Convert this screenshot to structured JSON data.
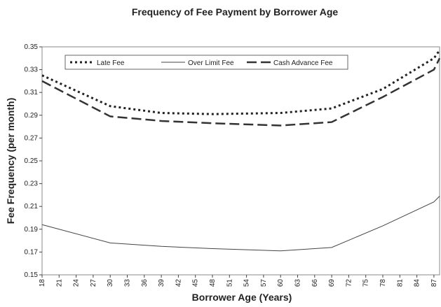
{
  "chart_data": {
    "type": "line",
    "title": "Frequency of Fee Payment by Borrower Age",
    "x_label": "Borrower Age (Years)",
    "y_label": "Fee Frequency (per month)",
    "x": [
      18,
      30,
      39,
      48,
      60,
      69,
      78,
      87,
      88
    ],
    "series": [
      {
        "name": "Late Fee",
        "color": "#222222",
        "dash": "3,4",
        "width": 3,
        "values": [
          0.325,
          0.298,
          0.292,
          0.291,
          0.292,
          0.296,
          0.313,
          0.34,
          0.347
        ]
      },
      {
        "name": "Over Limit Fee",
        "color": "#444444",
        "dash": "none",
        "width": 1,
        "values": [
          0.194,
          0.178,
          0.175,
          0.173,
          0.171,
          0.174,
          0.193,
          0.214,
          0.219
        ]
      },
      {
        "name": "Cash Advance Fee",
        "color": "#333333",
        "dash": "14,6",
        "width": 2.5,
        "values": [
          0.32,
          0.289,
          0.285,
          0.283,
          0.281,
          0.284,
          0.306,
          0.33,
          0.34
        ]
      }
    ],
    "xlim": [
      18,
      88
    ],
    "xticks": [
      18,
      21,
      24,
      27,
      30,
      33,
      36,
      39,
      42,
      45,
      48,
      51,
      54,
      57,
      60,
      63,
      66,
      69,
      72,
      75,
      78,
      81,
      84,
      87
    ],
    "ylim": [
      0.15,
      0.35
    ],
    "yticks": [
      0.15,
      0.17,
      0.19,
      0.21,
      0.23,
      0.25,
      0.27,
      0.29,
      0.31,
      0.33,
      0.35
    ],
    "legend": "top"
  }
}
